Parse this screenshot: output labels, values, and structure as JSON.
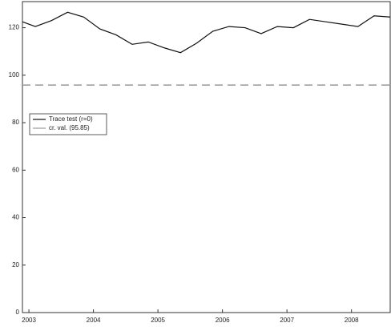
{
  "chart_data": {
    "type": "line",
    "series": [
      {
        "name": "Trace test (r=0)",
        "color": "#111111",
        "dash": false,
        "x": [
          2002.9,
          2003.1,
          2003.35,
          2003.6,
          2003.85,
          2004.1,
          2004.35,
          2004.6,
          2004.85,
          2005.1,
          2005.35,
          2005.6,
          2005.85,
          2006.1,
          2006.35,
          2006.6,
          2006.85,
          2007.1,
          2007.35,
          2007.6,
          2007.85,
          2008.1,
          2008.35,
          2008.6
        ],
        "values": [
          122.5,
          120.5,
          123,
          126.5,
          124.5,
          119.5,
          117,
          113,
          114,
          111.5,
          109.5,
          113.5,
          118.5,
          120.5,
          120,
          117.5,
          120.5,
          120,
          123.5,
          122.5,
          121.5,
          120.5,
          125,
          124.5
        ]
      },
      {
        "name": "cr. val. (95.85)",
        "color": "#999999",
        "dash": true,
        "x": [
          2002.9,
          2008.6
        ],
        "values": [
          95.85,
          95.85
        ]
      }
    ],
    "xlim": [
      2002.9,
      2008.6
    ],
    "xticks": [
      2003,
      2004,
      2005,
      2006,
      2007,
      2008
    ],
    "ylim": [
      0,
      131
    ],
    "yticks": [
      0,
      20,
      40,
      60,
      80,
      100,
      120
    ],
    "grid": false,
    "legend": "left"
  }
}
